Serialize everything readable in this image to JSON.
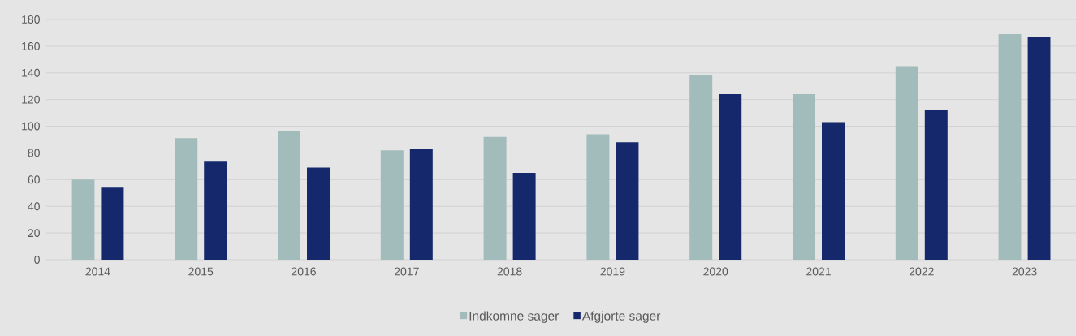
{
  "chart_data": {
    "type": "bar",
    "categories": [
      "2014",
      "2015",
      "2016",
      "2017",
      "2018",
      "2019",
      "2020",
      "2021",
      "2022",
      "2023"
    ],
    "series": [
      {
        "name": "Indkomne sager",
        "color": "#a2bbbb",
        "values": [
          60,
          91,
          96,
          82,
          92,
          94,
          138,
          124,
          145,
          169
        ]
      },
      {
        "name": "Afgjorte sager",
        "color": "#15286b",
        "values": [
          54,
          74,
          69,
          83,
          65,
          88,
          124,
          103,
          112,
          167
        ]
      }
    ],
    "ylim": [
      0,
      180
    ],
    "yticks": [
      0,
      20,
      40,
      60,
      80,
      100,
      120,
      140,
      160,
      180
    ],
    "grid": "y",
    "legend": "bottom"
  }
}
